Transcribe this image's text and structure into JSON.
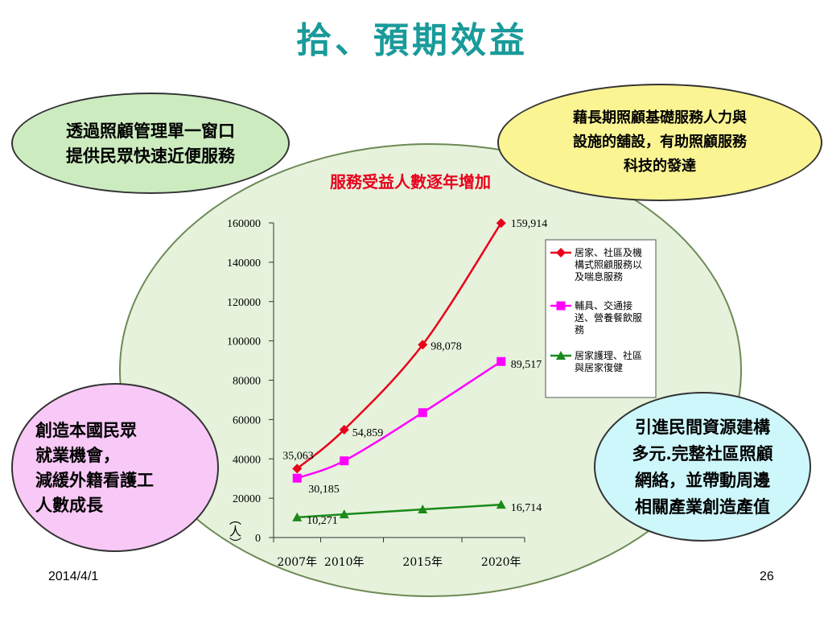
{
  "slide": {
    "title": "拾、預期效益",
    "date": "2014/4/1",
    "page_number": "26"
  },
  "bubbles": {
    "top_left": [
      "透過照顧管理單一窗口",
      "提供民眾快速近便服務"
    ],
    "top_right": [
      "藉長期照顧基礎服務人力與",
      "設施的舖設，有助照顧服務",
      "科技的發達"
    ],
    "bottom_left": [
      "創造本國民眾",
      "就業機會，",
      "減緩外籍看護工",
      "人數成長"
    ],
    "bottom_right": [
      "引進民間資源建構",
      "多元.完整社區照顧",
      "網絡，並帶動周邊",
      "相關產業創造產值"
    ]
  },
  "colors": {
    "title": "#1a9a9a",
    "chart_title": "#e8001c",
    "series1": "#e8001c",
    "series2": "#ff00ff",
    "series3": "#1a8a1a"
  },
  "chart_data": {
    "type": "line",
    "title": "服務受益人數逐年增加",
    "ylabel": "（人）",
    "categories": [
      "2007年",
      "2010年",
      "2015年",
      "2020年"
    ],
    "x": [
      2007,
      2010,
      2015,
      2020
    ],
    "ylim": [
      0,
      160000
    ],
    "yticks": [
      0,
      20000,
      40000,
      60000,
      80000,
      100000,
      120000,
      140000,
      160000
    ],
    "legend_position": "right",
    "series": [
      {
        "name": "居家、社區及機構式照顧服務以及喘息服務",
        "legend_lines": [
          "居家、社區及機",
          "構式照顧服務以",
          "及喘息服務"
        ],
        "marker": "diamond",
        "x": [
          2007,
          2010,
          2015,
          2020
        ],
        "values": [
          35063,
          54859,
          98078,
          159914
        ],
        "labels": [
          "35,063",
          "54,859",
          "98,078",
          "159,914"
        ]
      },
      {
        "name": "輔具、交通接送、營養餐飲服務",
        "legend_lines": [
          "輔具、交通接",
          "送、營養餐飲服",
          "務"
        ],
        "marker": "square",
        "x": [
          2007,
          2010,
          2015,
          2020
        ],
        "values": [
          30185,
          39000,
          63500,
          89517
        ],
        "labels": [
          "30,185",
          "",
          "",
          "89,517"
        ]
      },
      {
        "name": "居家護理、社區與居家復健",
        "legend_lines": [
          "居家護理、社區",
          "與居家復健"
        ],
        "marker": "triangle",
        "x": [
          2007,
          2010,
          2015,
          2020
        ],
        "values": [
          10271,
          11800,
          14300,
          16714
        ],
        "labels": [
          "10,271",
          "",
          "",
          "16,714"
        ]
      }
    ]
  }
}
